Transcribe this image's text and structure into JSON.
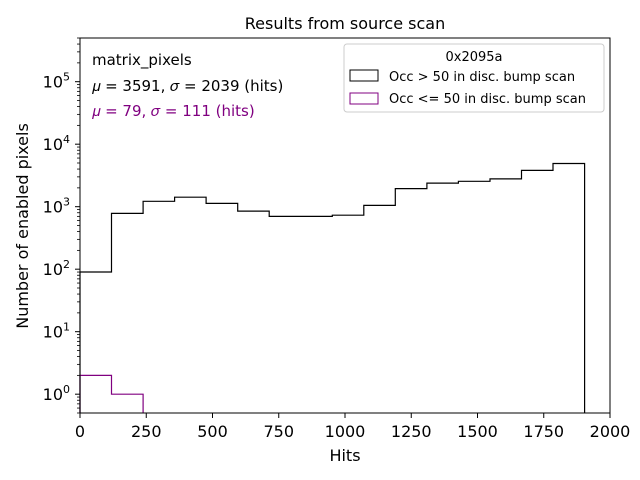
{
  "chart_data": {
    "type": "histogram",
    "title": "Results from source scan",
    "xlabel": "Hits",
    "ylabel": "Number of enabled pixels",
    "xlim": [
      0,
      2000
    ],
    "ylim": [
      0.5,
      500000
    ],
    "yscale": "log",
    "grid": false,
    "x_ticks": [
      0,
      250,
      500,
      750,
      1000,
      1250,
      1500,
      1750,
      2000
    ],
    "x_tick_labels": [
      "0",
      "250",
      "500",
      "750",
      "1000",
      "1250",
      "1500",
      "1750",
      "2000"
    ],
    "y_ticks": [
      {
        "value": 1,
        "base": "10",
        "exp": "0"
      },
      {
        "value": 10,
        "base": "10",
        "exp": "1"
      },
      {
        "value": 100,
        "base": "10",
        "exp": "2"
      },
      {
        "value": 1000,
        "base": "10",
        "exp": "3"
      },
      {
        "value": 10000,
        "base": "10",
        "exp": "4"
      },
      {
        "value": 100000,
        "base": "10",
        "exp": "5"
      }
    ],
    "legend": {
      "title": "0x2095a",
      "placement": "top-right"
    },
    "series": [
      {
        "name": "Occ > 50 in disc. bump scan",
        "color": "#000000",
        "bin_edges": [
          0,
          119,
          238,
          357,
          476,
          595,
          714,
          833,
          952,
          1071,
          1190,
          1309,
          1428,
          1547,
          1666,
          1785,
          1904
        ],
        "counts": [
          90,
          780,
          1220,
          1420,
          1130,
          850,
          700,
          700,
          730,
          1050,
          1950,
          2380,
          2550,
          2780,
          3800,
          4900
        ]
      },
      {
        "name": "Occ <= 50 in disc. bump scan",
        "color": "#800080",
        "bin_edges": [
          0,
          119,
          238
        ],
        "counts": [
          2,
          1
        ]
      }
    ],
    "annotations": [
      {
        "text": "matrix_pixels",
        "color": "#000000"
      },
      {
        "text": "𝜇 = 3591, 𝜎 = 2039 (hits)",
        "color": "#000000"
      },
      {
        "text": "𝜇 = 79, 𝜎 = 111 (hits)",
        "color": "#800080"
      }
    ]
  }
}
